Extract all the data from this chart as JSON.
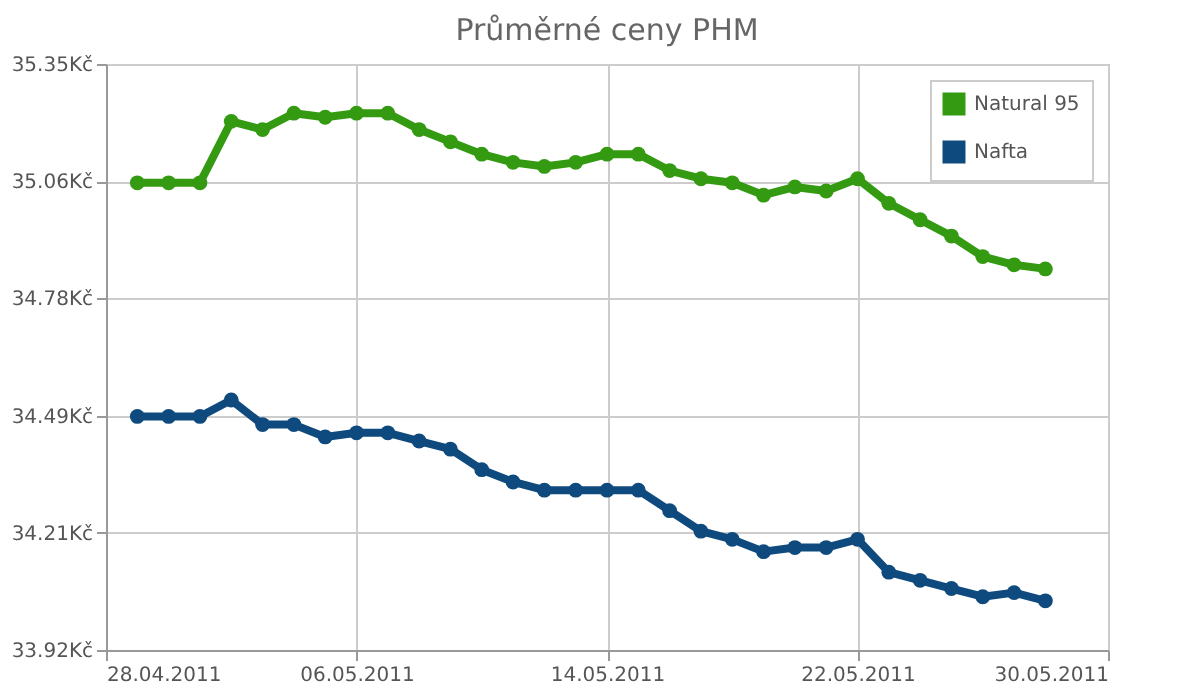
{
  "chart_data": {
    "type": "line",
    "title": "Průměrné ceny PHM",
    "x": [
      "2011-04-29",
      "2011-04-30",
      "2011-05-01",
      "2011-05-02",
      "2011-05-03",
      "2011-05-04",
      "2011-05-05",
      "2011-05-06",
      "2011-05-07",
      "2011-05-08",
      "2011-05-09",
      "2011-05-10",
      "2011-05-11",
      "2011-05-12",
      "2011-05-13",
      "2011-05-14",
      "2011-05-15",
      "2011-05-16",
      "2011-05-17",
      "2011-05-18",
      "2011-05-19",
      "2011-05-20",
      "2011-05-21",
      "2011-05-22",
      "2011-05-23",
      "2011-05-24",
      "2011-05-25",
      "2011-05-26",
      "2011-05-27",
      "2011-05-28"
    ],
    "series": [
      {
        "name": "Natural 95",
        "color": "#339a12",
        "values": [
          35.06,
          35.06,
          35.06,
          35.21,
          35.19,
          35.23,
          35.22,
          35.23,
          35.23,
          35.19,
          35.16,
          35.13,
          35.11,
          35.1,
          35.11,
          35.13,
          35.13,
          35.09,
          35.07,
          35.06,
          35.03,
          35.05,
          35.04,
          35.07,
          35.01,
          34.97,
          34.93,
          34.88,
          34.86,
          34.85
        ]
      },
      {
        "name": "Nafta",
        "color": "#0f4a7e",
        "values": [
          34.49,
          34.49,
          34.49,
          34.53,
          34.47,
          34.47,
          34.44,
          34.45,
          34.45,
          34.43,
          34.41,
          34.36,
          34.33,
          34.31,
          34.31,
          34.31,
          34.31,
          34.26,
          34.21,
          34.19,
          34.16,
          34.17,
          34.17,
          34.19,
          34.11,
          34.09,
          34.07,
          34.05,
          34.06,
          34.04
        ]
      }
    ],
    "xlim": [
      "2011-04-28",
      "2011-05-30"
    ],
    "xticks": [
      {
        "value": "2011-04-28",
        "label": "28.04.2011"
      },
      {
        "value": "2011-05-06",
        "label": "06.05.2011"
      },
      {
        "value": "2011-05-14",
        "label": "14.05.2011"
      },
      {
        "value": "2011-05-22",
        "label": "22.05.2011"
      },
      {
        "value": "2011-05-30",
        "label": "30.05.2011"
      }
    ],
    "ylim": [
      33.92,
      35.35
    ],
    "yticks": [
      {
        "value": 33.92,
        "label": "33.92Kč"
      },
      {
        "value": 34.206,
        "label": "34.21Kč"
      },
      {
        "value": 34.492,
        "label": "34.49Kč"
      },
      {
        "value": 34.778,
        "label": "34.78Kč"
      },
      {
        "value": 35.064,
        "label": "35.06Kč"
      },
      {
        "value": 35.35,
        "label": "35.35Kč"
      }
    ],
    "grid": true,
    "legend": "top right",
    "marker": "circle",
    "line_style": "solid"
  }
}
